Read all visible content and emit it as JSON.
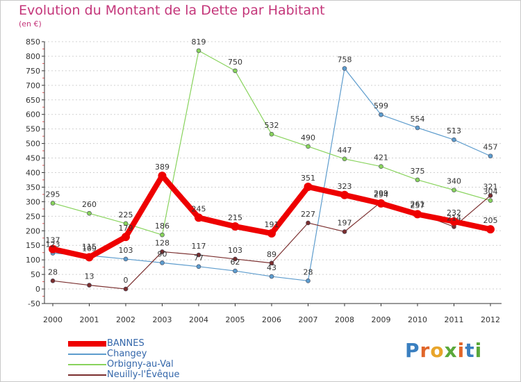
{
  "title": "Evolution du Montant de la Dette par Habitant",
  "unit": "(en €)",
  "logo": {
    "letters": [
      "P",
      "r",
      "o",
      "x",
      "i",
      "t",
      "i"
    ],
    "colors": [
      "#3a7fc0",
      "#e0662a",
      "#e8a52b",
      "#5aa83a",
      "#e0662a",
      "#3a7fc0",
      "#5aa83a"
    ]
  },
  "chart_data": {
    "type": "line",
    "title": "Evolution du Montant de la Dette par Habitant",
    "ylabel": "(en €)",
    "xlabel": "",
    "categories": [
      "2000",
      "2001",
      "2002",
      "2003",
      "2004",
      "2005",
      "2006",
      "2007",
      "2008",
      "2009",
      "2010",
      "2011",
      "2012"
    ],
    "ylim": [
      -50,
      850
    ],
    "yticks": [
      -50,
      0,
      50,
      100,
      150,
      200,
      250,
      300,
      350,
      400,
      450,
      500,
      550,
      600,
      650,
      700,
      750,
      800,
      850
    ],
    "grid": "horizontal-dashed",
    "legend": "bottom-left",
    "series": [
      {
        "name": "BANNES",
        "color": "#ee0000",
        "values": [
          137,
          109,
          179,
          389,
          245,
          215,
          191,
          351,
          323,
          294,
          257,
          232,
          205
        ]
      },
      {
        "name": "Changey",
        "color": "#5d9ccd",
        "values": [
          123,
          115,
          103,
          90,
          77,
          62,
          43,
          28,
          758,
          599,
          554,
          513,
          457
        ]
      },
      {
        "name": "Orbigny-au-Val",
        "color": "#88d35c",
        "values": [
          295,
          260,
          225,
          186,
          819,
          750,
          532,
          490,
          447,
          421,
          375,
          340,
          304
        ]
      },
      {
        "name": "Neuilly-l'Évêque",
        "color": "#7a2e2e",
        "values": [
          28,
          13,
          0,
          128,
          117,
          103,
          89,
          227,
          197,
          299,
          261,
          214,
          321
        ]
      }
    ]
  }
}
